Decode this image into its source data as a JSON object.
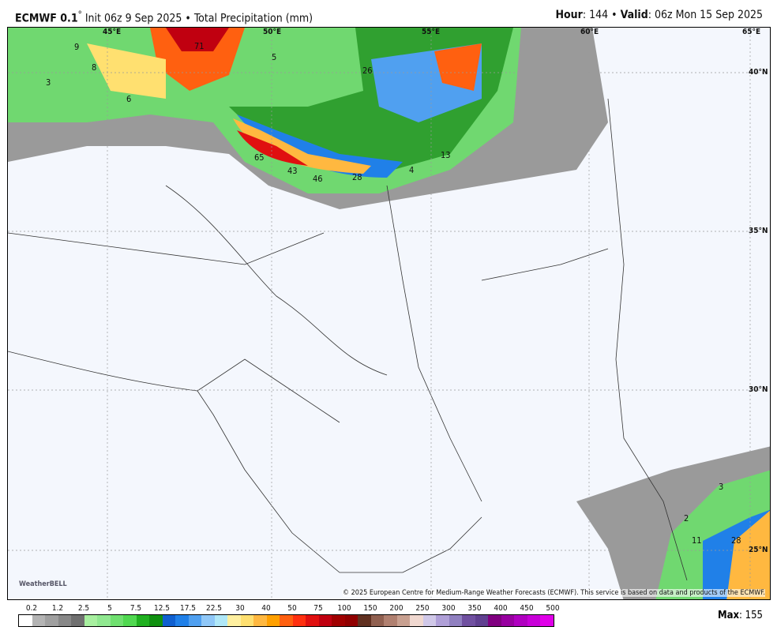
{
  "header": {
    "model": "ECMWF 0.1",
    "degree": "°",
    "init": "Init 06z 9 Sep 2025",
    "separator": "•",
    "product": "Total Precipitation (mm)",
    "hour_label": "Hour",
    "hour": "144",
    "valid_label": "Valid",
    "valid": "06z Mon 15 Sep 2025"
  },
  "map": {
    "lon_labels": [
      "45°E",
      "50°E",
      "55°E",
      "60°E",
      "65°E"
    ],
    "lat_labels": [
      "40°N",
      "35°N",
      "30°N",
      "25°N"
    ],
    "values": [
      "71",
      "26",
      "65",
      "43",
      "46",
      "28",
      "4",
      "13",
      "3",
      "9",
      "8",
      "6",
      "3",
      "2",
      "11",
      "28",
      "5"
    ],
    "copyright": "© 2025 European Centre for Medium-Range Weather Forecasts (ECMWF). This service is based on data and products of the ECMWF.",
    "logo": "WeatherBELL"
  },
  "colorbar": {
    "labels": [
      "0.2",
      "1.2",
      "2.5",
      "5",
      "7.5",
      "12.5",
      "17.5",
      "22.5",
      "30",
      "40",
      "50",
      "75",
      "100",
      "150",
      "200",
      "250",
      "300",
      "350",
      "400",
      "450",
      "500"
    ],
    "colors": [
      "#ffffff",
      "#b4b4b4",
      "#a0a0a0",
      "#888888",
      "#707070",
      "#a8f0a0",
      "#90e890",
      "#70e070",
      "#50d850",
      "#20b020",
      "#109010",
      "#1060d0",
      "#2080e8",
      "#50a0f0",
      "#90c8f8",
      "#b0e8f8",
      "#fff0a0",
      "#ffe070",
      "#ffb840",
      "#ffa000",
      "#ff6010",
      "#ff3010",
      "#e01010",
      "#c00010",
      "#a00000",
      "#900000",
      "#603020",
      "#906050",
      "#b08070",
      "#c8a090",
      "#f0d8d0",
      "#d0c8e8",
      "#b0a0d8",
      "#9080c0",
      "#7050a0",
      "#604090",
      "#800080",
      "#9800a0",
      "#b000c0",
      "#c800d8",
      "#e000e8"
    ]
  },
  "max": {
    "label": "Max",
    "value": "155"
  }
}
